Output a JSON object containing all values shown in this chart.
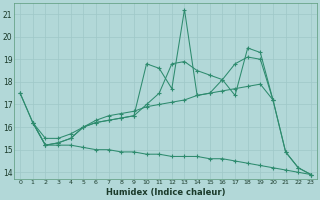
{
  "background_color": "#b2d8d8",
  "grid_color": "#d0e8e8",
  "line_color": "#2e8b6e",
  "xlabel": "Humidex (Indice chaleur)",
  "xlim": [
    -0.5,
    23.5
  ],
  "ylim": [
    13.7,
    21.5
  ],
  "yticks": [
    14,
    15,
    16,
    17,
    18,
    19,
    20,
    21
  ],
  "xticks": [
    0,
    1,
    2,
    3,
    4,
    5,
    6,
    7,
    8,
    9,
    10,
    11,
    12,
    13,
    14,
    15,
    16,
    17,
    18,
    19,
    20,
    21,
    22,
    23
  ],
  "series": [
    {
      "x": [
        0,
        1,
        2,
        3,
        4,
        5,
        6,
        7,
        8,
        9,
        10,
        11,
        12,
        13,
        14,
        15,
        16,
        17,
        18,
        19,
        20,
        21,
        22,
        23
      ],
      "y": [
        17.5,
        16.2,
        15.2,
        15.3,
        15.5,
        16.0,
        16.2,
        16.3,
        16.4,
        16.5,
        18.8,
        18.6,
        17.7,
        21.2,
        17.4,
        17.5,
        18.1,
        17.4,
        19.5,
        19.3,
        17.2,
        14.9,
        14.2,
        13.9
      ]
    },
    {
      "x": [
        0,
        1,
        2,
        3,
        4,
        5,
        6,
        7,
        8,
        9,
        10,
        11,
        12,
        13,
        14,
        15,
        16,
        17,
        18,
        19,
        20,
        21,
        22,
        23
      ],
      "y": [
        17.5,
        16.2,
        15.2,
        15.3,
        15.5,
        16.0,
        16.2,
        16.3,
        16.4,
        16.5,
        17.0,
        17.5,
        18.8,
        18.9,
        18.5,
        18.3,
        18.1,
        18.8,
        19.1,
        19.0,
        17.2,
        14.9,
        14.2,
        13.9
      ]
    },
    {
      "x": [
        1,
        2,
        3,
        4,
        5,
        6,
        7,
        8,
        9,
        10,
        11,
        12,
        13,
        14,
        15,
        16,
        17,
        18,
        19,
        20
      ],
      "y": [
        16.2,
        15.5,
        15.5,
        15.7,
        16.0,
        16.3,
        16.5,
        16.6,
        16.7,
        16.9,
        17.0,
        17.1,
        17.2,
        17.4,
        17.5,
        17.6,
        17.7,
        17.8,
        17.9,
        17.2
      ]
    },
    {
      "x": [
        1,
        2,
        3,
        4,
        5,
        6,
        7,
        8,
        9,
        10,
        11,
        12,
        13,
        14,
        15,
        16,
        17,
        18,
        19,
        20,
        21,
        22,
        23
      ],
      "y": [
        16.2,
        15.2,
        15.2,
        15.2,
        15.1,
        15.0,
        15.0,
        14.9,
        14.9,
        14.8,
        14.8,
        14.7,
        14.7,
        14.7,
        14.6,
        14.6,
        14.5,
        14.4,
        14.3,
        14.2,
        14.1,
        14.0,
        13.9
      ]
    }
  ]
}
